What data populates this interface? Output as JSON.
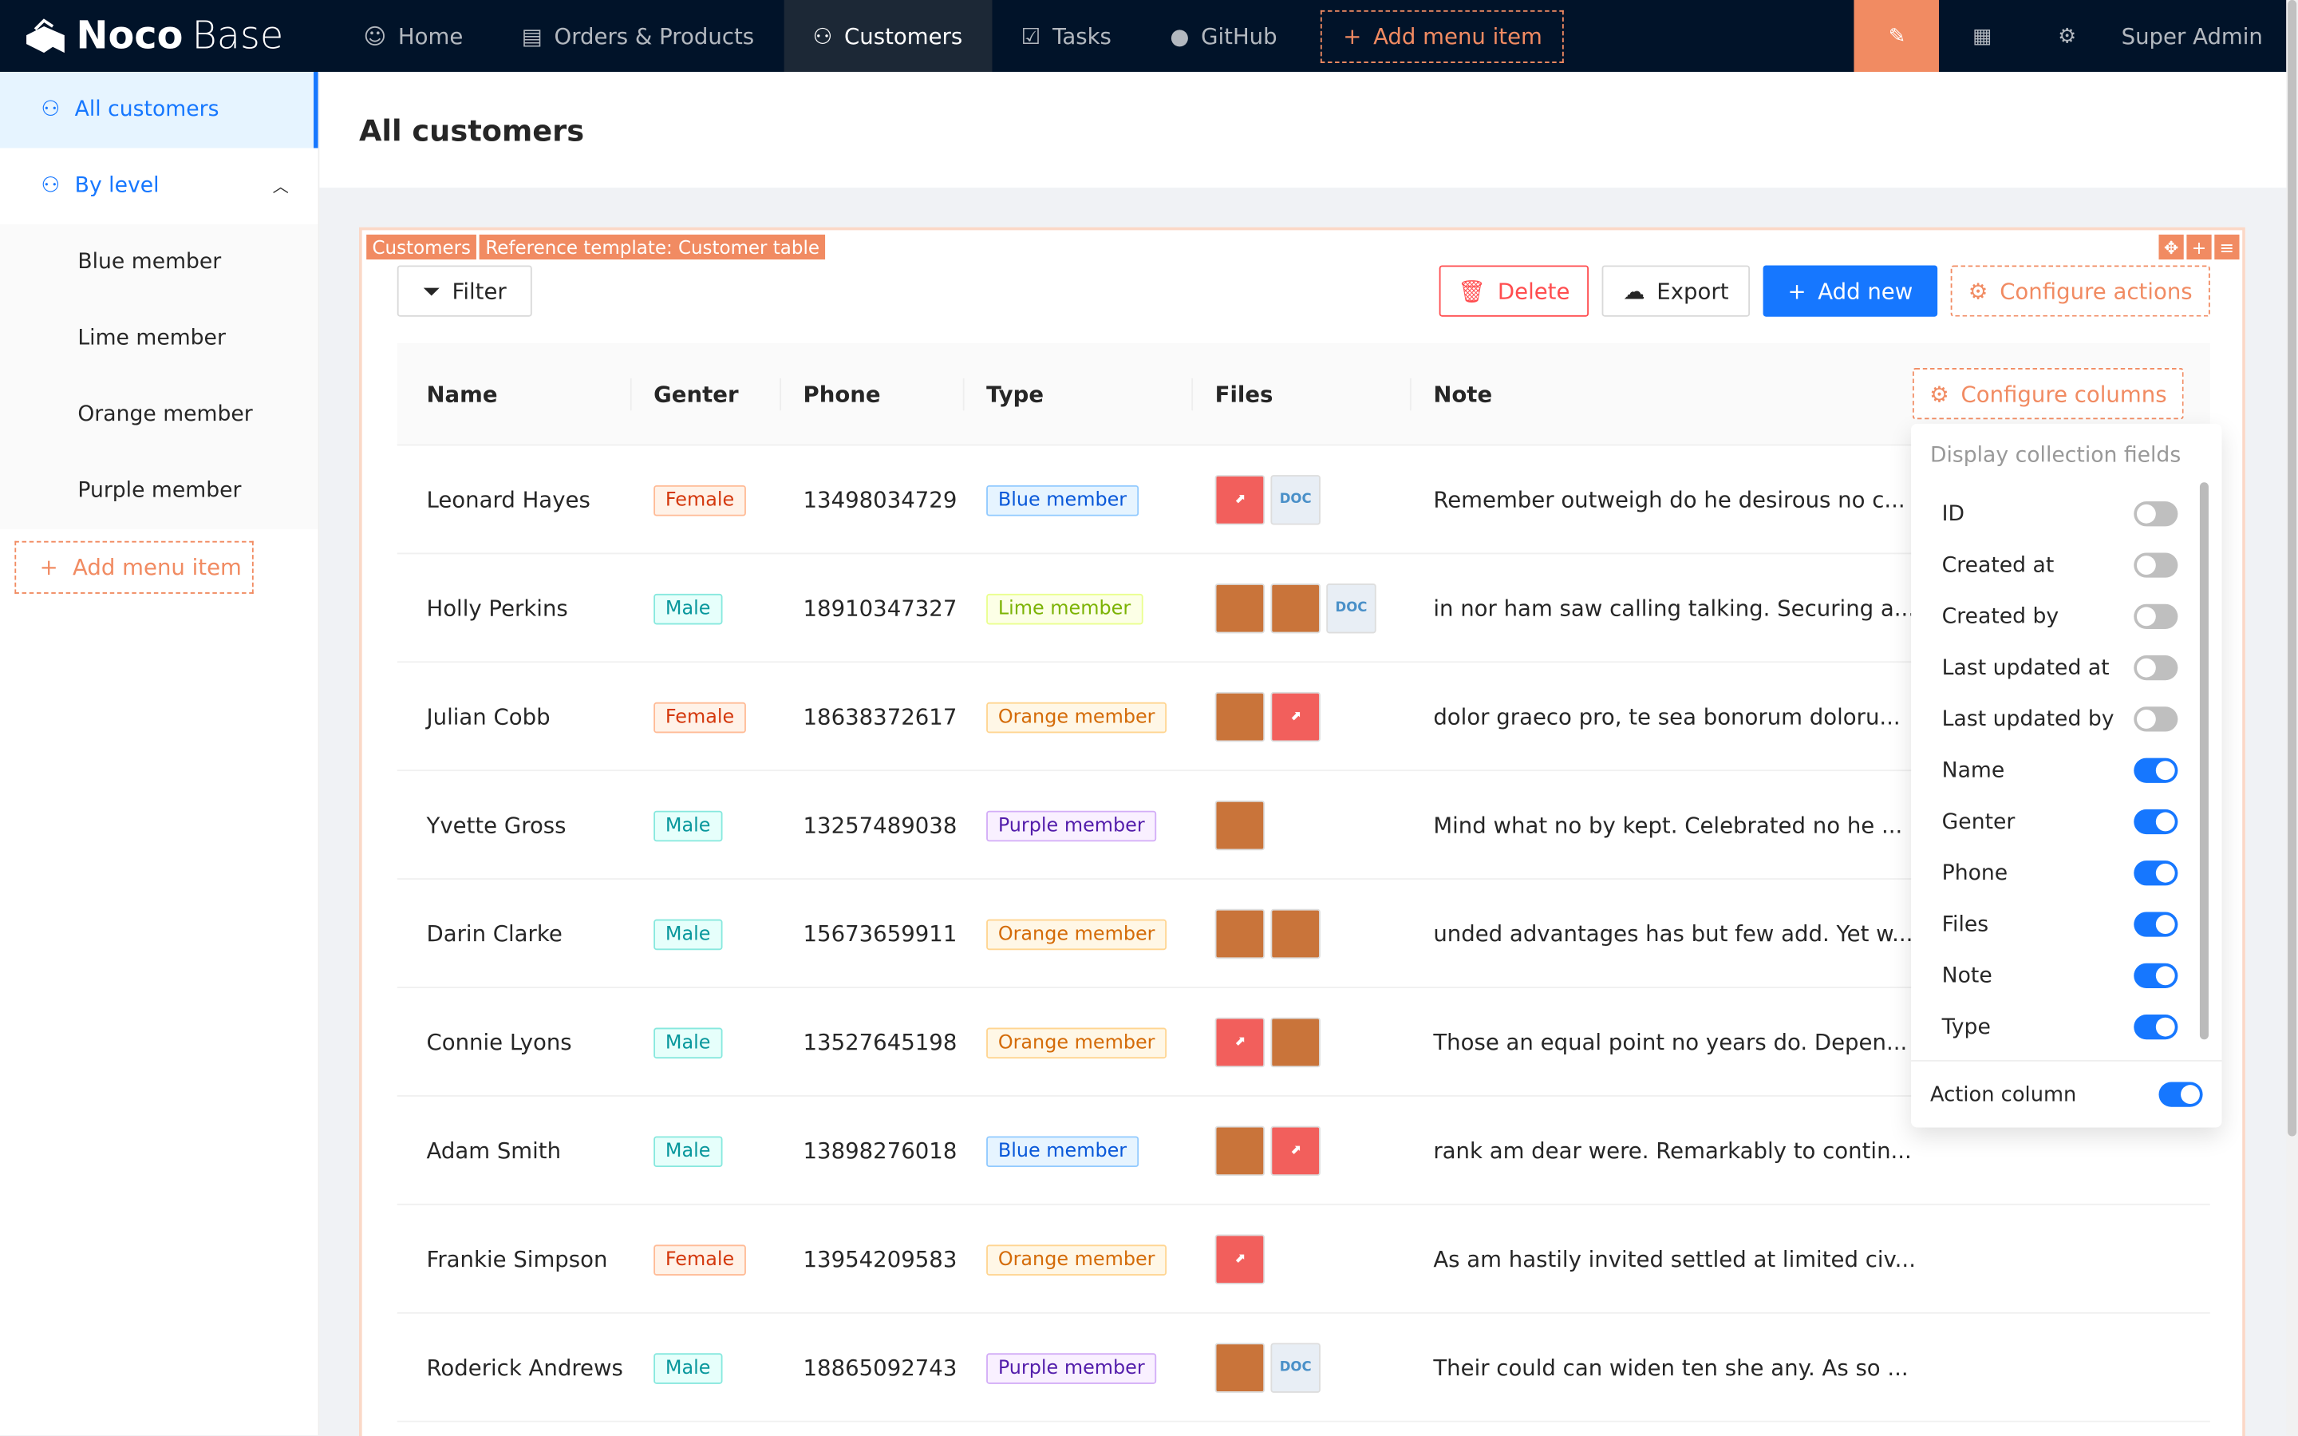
{
  "header": {
    "logo": "NocoBase",
    "logo_bold": "Noco",
    "logo_light": "Base",
    "nav": [
      {
        "label": "Home",
        "icon": "smile-icon"
      },
      {
        "label": "Orders & Products",
        "icon": "file-check-icon"
      },
      {
        "label": "Customers",
        "icon": "users-icon",
        "active": true
      },
      {
        "label": "Tasks",
        "icon": "checkbox-icon"
      },
      {
        "label": "GitHub",
        "icon": "github-icon"
      }
    ],
    "add_menu_item": "Add menu item",
    "user": "Super Admin",
    "accent": "#f18b62"
  },
  "sidebar": {
    "items": [
      {
        "label": "All customers"
      },
      {
        "label": "By level"
      }
    ],
    "sub_items": [
      "Blue member",
      "Lime member",
      "Orange member",
      "Purple member"
    ],
    "add_menu_item": "Add menu item"
  },
  "page": {
    "title": "All customers"
  },
  "block": {
    "tags": [
      "Customers",
      "Reference template: Customer table"
    ],
    "filter": "Filter",
    "delete": "Delete",
    "export": "Export",
    "add_new": "Add new",
    "configure_actions": "Configure actions",
    "configure_columns": "Configure columns"
  },
  "table": {
    "columns": [
      "Name",
      "Genter",
      "Phone",
      "Type",
      "Files",
      "Note"
    ],
    "rows": [
      {
        "name": "Leonard Hayes",
        "gender": "Female",
        "phone": "13498034729",
        "type": "Blue member",
        "files": [
          "pdf",
          "doc"
        ],
        "note": "Remember outweigh do he desirous no c..."
      },
      {
        "name": "Holly Perkins",
        "gender": "Male",
        "phone": "18910347327",
        "type": "Lime member",
        "files": [
          "img",
          "img",
          "doc"
        ],
        "note": "in nor ham saw calling talking. Securing a..."
      },
      {
        "name": "Julian Cobb",
        "gender": "Female",
        "phone": "18638372617",
        "type": "Orange member",
        "files": [
          "img",
          "pdf"
        ],
        "note": "dolor graeco pro, te sea bonorum doloru..."
      },
      {
        "name": "Yvette Gross",
        "gender": "Male",
        "phone": "13257489038",
        "type": "Purple member",
        "files": [
          "img"
        ],
        "note": "Mind what no by kept. Celebrated no he ..."
      },
      {
        "name": "Darin Clarke",
        "gender": "Male",
        "phone": "15673659911",
        "type": "Orange member",
        "files": [
          "img",
          "img"
        ],
        "note": "unded advantages has but few add. Yet w..."
      },
      {
        "name": "Connie Lyons",
        "gender": "Male",
        "phone": "13527645198",
        "type": "Orange member",
        "files": [
          "pdf",
          "img"
        ],
        "note": "Those an equal point no years do. Depen..."
      },
      {
        "name": "Adam Smith",
        "gender": "Male",
        "phone": "13898276018",
        "type": "Blue member",
        "files": [
          "img",
          "pdf"
        ],
        "note": "rank am dear were. Remarkably to contin..."
      },
      {
        "name": "Frankie Simpson",
        "gender": "Female",
        "phone": "13954209583",
        "type": "Orange member",
        "files": [
          "pdf"
        ],
        "note": "As am hastily invited settled at limited civ..."
      },
      {
        "name": "Roderick Andrews",
        "gender": "Male",
        "phone": "18865092743",
        "type": "Purple member",
        "files": [
          "img",
          "doc"
        ],
        "note": "Their could can widen ten she any. As so ..."
      }
    ]
  },
  "popover": {
    "title": "Display collection fields",
    "fields": [
      {
        "label": "ID",
        "on": false
      },
      {
        "label": "Created at",
        "on": false
      },
      {
        "label": "Created by",
        "on": false
      },
      {
        "label": "Last updated at",
        "on": false
      },
      {
        "label": "Last updated by",
        "on": false
      },
      {
        "label": "Name",
        "on": true
      },
      {
        "label": "Genter",
        "on": true
      },
      {
        "label": "Phone",
        "on": true
      },
      {
        "label": "Files",
        "on": true
      },
      {
        "label": "Note",
        "on": true
      },
      {
        "label": "Type",
        "on": true
      }
    ],
    "action_column": {
      "label": "Action column",
      "on": true
    }
  }
}
